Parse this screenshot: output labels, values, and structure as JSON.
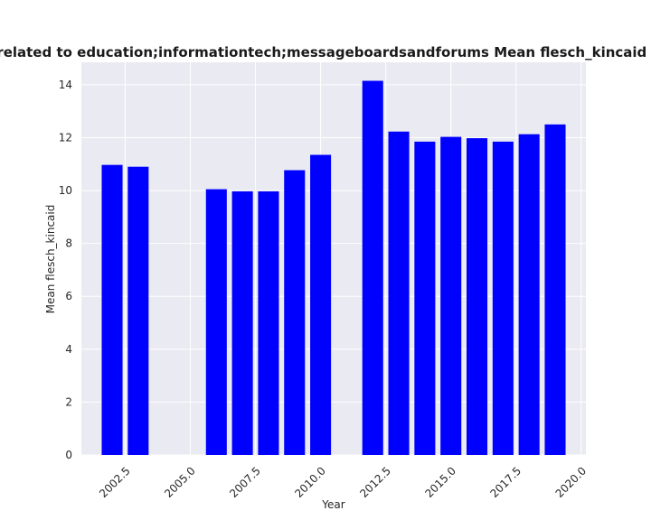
{
  "chart_data": {
    "type": "bar",
    "title": "are related to education;informationtech;messageboardsandforums Mean flesch_kincaid in priv",
    "xlabel": "Year",
    "ylabel": "Mean flesch_kincaid",
    "x": [
      2002,
      2003,
      2006,
      2007,
      2008,
      2009,
      2010,
      2012,
      2013,
      2014,
      2015,
      2016,
      2017,
      2018,
      2019
    ],
    "values": [
      10.97,
      10.9,
      10.05,
      9.97,
      9.97,
      10.77,
      11.35,
      14.15,
      12.23,
      11.85,
      12.03,
      11.98,
      11.85,
      12.13,
      12.5
    ],
    "xlim": [
      2000.82,
      2020.18
    ],
    "ylim": [
      0,
      14.85
    ],
    "xticks": [
      2002.5,
      2005.0,
      2007.5,
      2010.0,
      2012.5,
      2015.0,
      2017.5,
      2020.0
    ],
    "xtick_labels": [
      "2002.5",
      "2005.0",
      "2007.5",
      "2010.0",
      "2012.5",
      "2015.0",
      "2017.5",
      "2020.0"
    ],
    "yticks": [
      0,
      2,
      4,
      6,
      8,
      10,
      12,
      14
    ],
    "ytick_labels": [
      "0",
      "2",
      "4",
      "6",
      "8",
      "10",
      "12",
      "14"
    ],
    "bar_width": 0.8,
    "bar_color": "#0000ff",
    "background_color": "#eaeaf2",
    "grid": true
  }
}
